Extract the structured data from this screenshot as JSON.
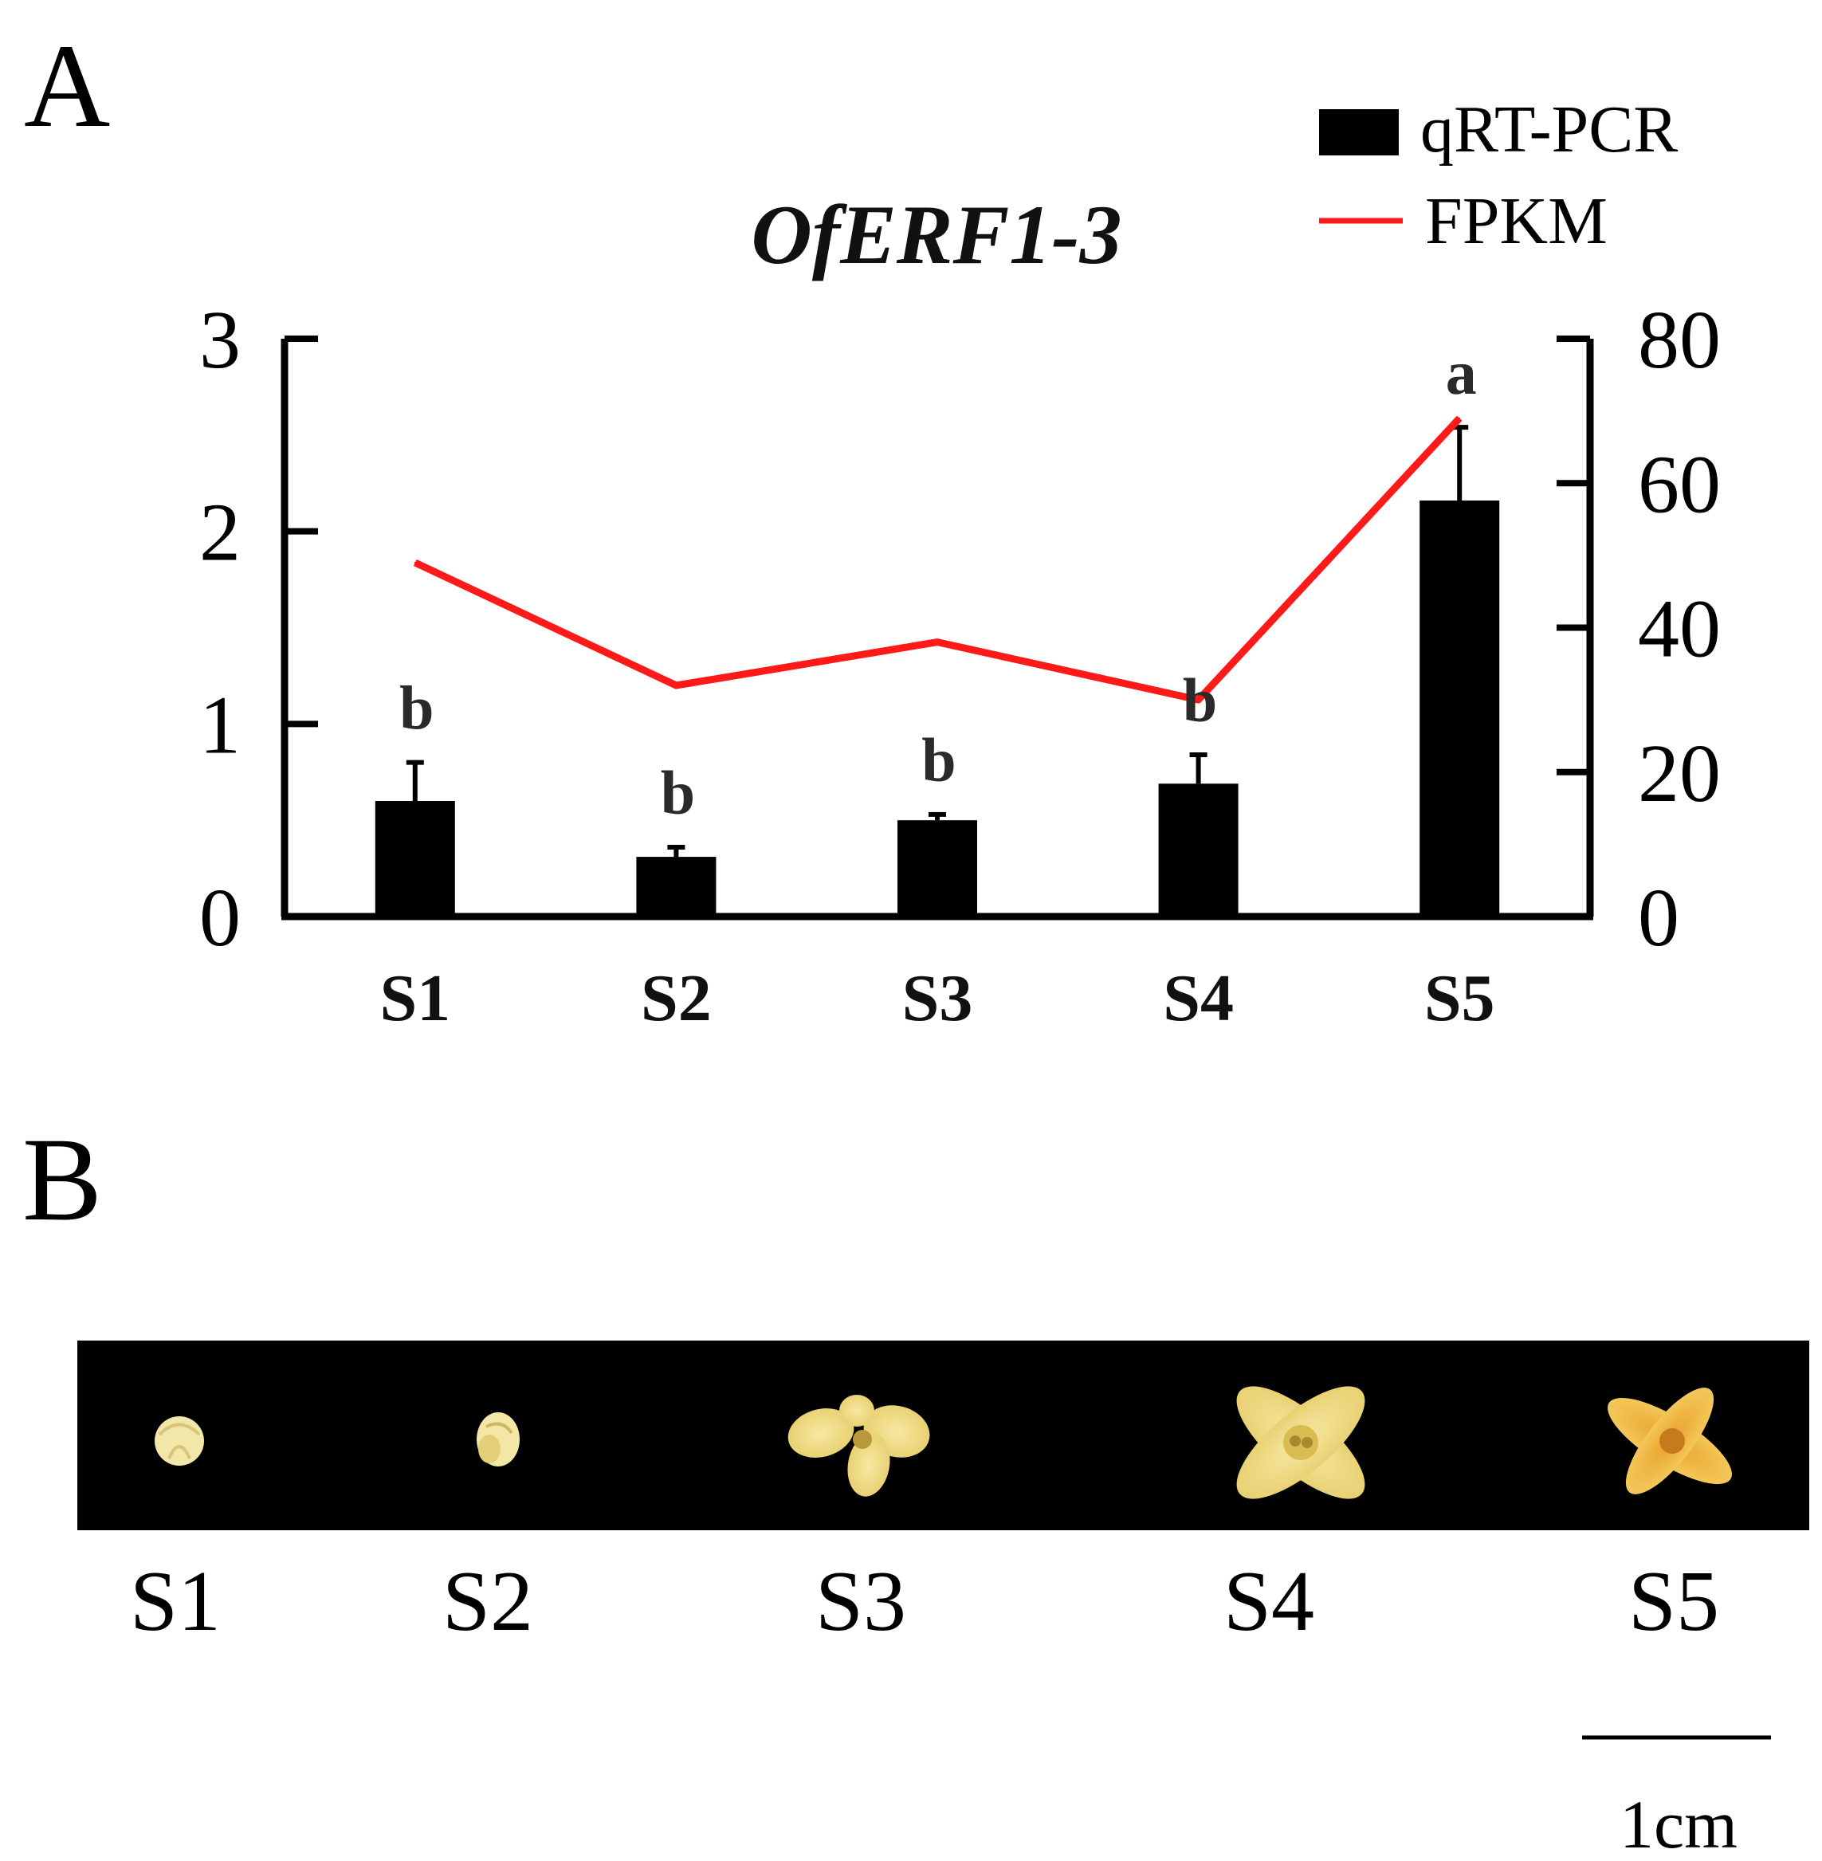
{
  "panels": {
    "a": "A",
    "b": "B"
  },
  "chart_data": {
    "type": "bar",
    "title": "OfERF1-3",
    "categories": [
      "S1",
      "S2",
      "S3",
      "S4",
      "S5"
    ],
    "series": [
      {
        "name": "qRT-PCR",
        "type": "bar",
        "axis": "left",
        "color": "#000000",
        "values": [
          0.6,
          0.31,
          0.5,
          0.69,
          2.16
        ],
        "error": [
          0.2,
          0.05,
          0.03,
          0.15,
          0.38
        ],
        "significance": [
          "b",
          "b",
          "b",
          "b",
          "a"
        ]
      },
      {
        "name": "FPKM",
        "type": "line",
        "axis": "right",
        "color": "#ff1a1a",
        "values": [
          49,
          32,
          38,
          30,
          69
        ]
      }
    ],
    "y_left": {
      "ylim": [
        0,
        3
      ],
      "ticks": [
        "0",
        "1",
        "2",
        "3"
      ]
    },
    "y_right": {
      "ylim": [
        0,
        80
      ],
      "ticks": [
        "0",
        "20",
        "40",
        "60",
        "80"
      ]
    },
    "xlabel": "",
    "ylabel": "",
    "grid": false,
    "legend_position": "top-right"
  },
  "photo_strip": {
    "labels": [
      "S1",
      "S2",
      "S3",
      "S4",
      "S5"
    ],
    "background": "#000000",
    "flower_color": "#f2e08a",
    "flower_color_s5": "#f0b83a"
  },
  "scale_bar": {
    "label": "1cm"
  }
}
